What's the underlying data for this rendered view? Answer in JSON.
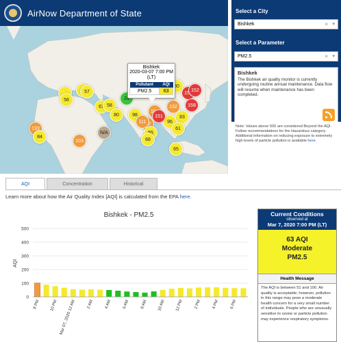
{
  "header": {
    "title": "AirNow Department of State"
  },
  "map": {
    "popup": {
      "city": "Bishkek",
      "time": "2020-03-07 7:00 PM (LT)",
      "col_pollutant": "Pollutant",
      "col_aqi": "AQI",
      "pollutant": "PM2.5",
      "aqi": "63"
    },
    "markers": [
      {
        "value": "",
        "color": "yellow"
      },
      {
        "value": "61",
        "color": "yellow"
      },
      {
        "value": "57",
        "color": "yellow"
      },
      {
        "value": "56",
        "color": "yellow"
      },
      {
        "value": "67",
        "color": "yellow"
      },
      {
        "value": "58",
        "color": "yellow"
      },
      {
        "value": "24",
        "color": "green"
      },
      {
        "value": "62",
        "color": "yellow"
      },
      {
        "value": "80",
        "color": "yellow"
      },
      {
        "value": "154",
        "color": "red"
      },
      {
        "value": "152",
        "color": "red"
      },
      {
        "value": "158",
        "color": "red"
      },
      {
        "value": "132",
        "color": "orange"
      },
      {
        "value": "83",
        "color": "yellow"
      },
      {
        "value": "96",
        "color": "yellow"
      },
      {
        "value": "61",
        "color": "yellow"
      },
      {
        "value": "104",
        "color": "orange"
      },
      {
        "value": "151",
        "color": "red"
      },
      {
        "value": "112",
        "color": "orange"
      },
      {
        "value": "98",
        "color": "yellow"
      },
      {
        "value": "55",
        "color": "yellow"
      },
      {
        "value": "68",
        "color": "yellow"
      },
      {
        "value": "65",
        "color": "yellow"
      },
      {
        "value": "133",
        "color": "orange"
      },
      {
        "value": "84",
        "color": "yellow"
      },
      {
        "value": "N/A",
        "color": "gray"
      },
      {
        "value": "103",
        "color": "orange"
      },
      {
        "value": "80",
        "color": "yellow"
      },
      {
        "value": "111",
        "color": "orange"
      }
    ]
  },
  "right": {
    "city_label": "Select a City",
    "city_value": "Bishkek",
    "param_label": "Select a Parameter",
    "param_value": "PM2.5",
    "info_title": "Bishkek",
    "info_text": "The Bishkek air quality monitor is currently undergoing routine annual maintenance. Data flow will resume when maintenance has been completed.",
    "note": "Note: Values above 500 are considered Beyond the AQI. Follow recommendations for the Hazardous category. Additional information on reducing exposure to extremely high levels of particle pollution is available",
    "note_link": "here."
  },
  "tabs": [
    {
      "label": "AQI"
    },
    {
      "label": "Concentration"
    },
    {
      "label": "Historical"
    }
  ],
  "learn": {
    "text": "Learn more about how the Air Quality Index [AQI] is calculated from the EPA",
    "link": "here."
  },
  "chart_data": {
    "type": "bar",
    "title": "Bishkek - PM2.5",
    "ylabel": "AQI",
    "xlabel": "",
    "ylim": [
      0,
      500
    ],
    "yticks": [
      0,
      100,
      200,
      300,
      400,
      500
    ],
    "categories": [
      "8 PM",
      "9 PM",
      "10 PM",
      "11 PM",
      "Mar 07, 2020 12 AM",
      "1 AM",
      "2 AM",
      "3 AM",
      "4 AM",
      "5 AM",
      "6 AM",
      "7 AM",
      "8 AM",
      "9 AM",
      "10 AM",
      "11 AM",
      "12 PM",
      "1 PM",
      "2 PM",
      "3 PM",
      "4 PM",
      "5 PM",
      "6 PM",
      "7 PM"
    ],
    "values": [
      101,
      89,
      78,
      67,
      56,
      53,
      55,
      53,
      50,
      45,
      39,
      35,
      31,
      40,
      51,
      60,
      65,
      62,
      68,
      69,
      70,
      66,
      64,
      63
    ],
    "colors": {
      "good": "#1fbf1f",
      "moderate": "#f5e92f",
      "usg": "#f19b3c"
    }
  },
  "current": {
    "title": "Current Conditions",
    "observed": "observed at",
    "time": "Mar 7, 2020 7:00 PM (LT)",
    "aqi_line": "63 AQI",
    "category": "Moderate",
    "pollutant": "PM2.5",
    "hm_title": "Health Message",
    "hm_text": "The AQI is between 51 and 100. Air quality is acceptable; however, pollution in this range may pose a moderate health concern for a very small number of individuals. People who are unusually sensitive to ozone or particle pollution may experience respiratory symptoms."
  }
}
